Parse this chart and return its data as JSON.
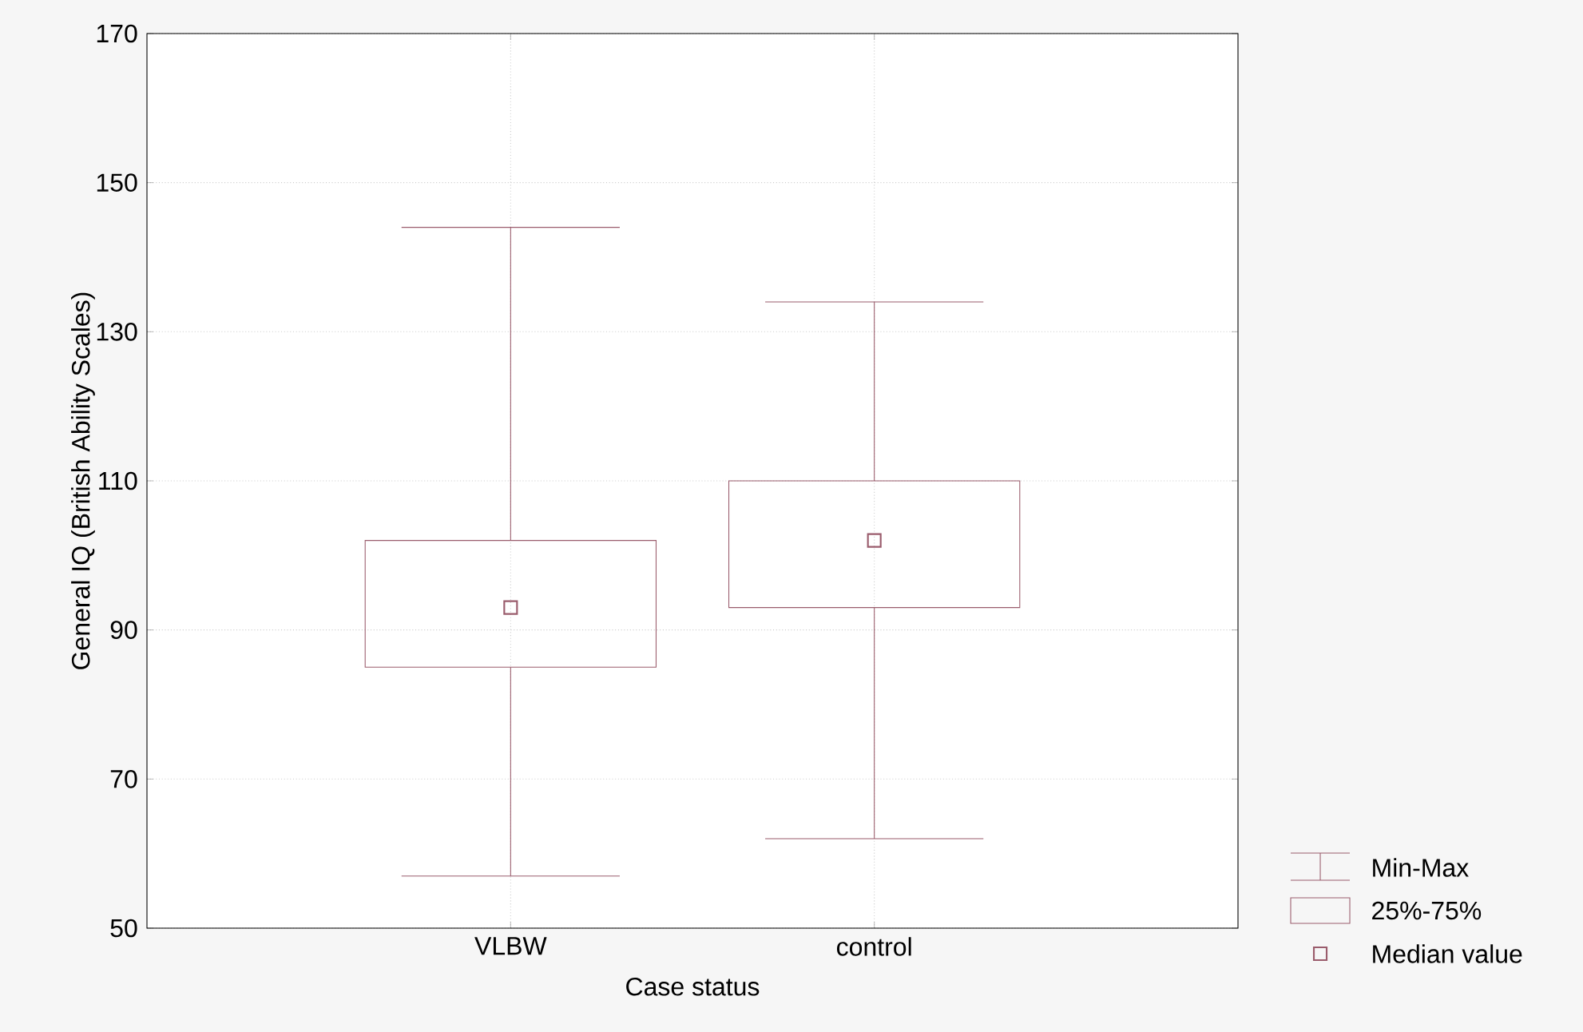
{
  "chart_data": {
    "type": "box",
    "categories": [
      "VLBW",
      "control"
    ],
    "color": "#9a5c6c",
    "boxes": [
      {
        "low": 57,
        "q1": 85,
        "median": 93,
        "q3": 102,
        "high": 144
      },
      {
        "low": 62,
        "q1": 93,
        "median": 102,
        "q3": 110,
        "high": 134
      }
    ],
    "marker": "square",
    "xlabel": "Case status",
    "ylabel": "General IQ (British Ability Scales)",
    "ylim": [
      50,
      170
    ],
    "yticks": [
      50,
      70,
      90,
      110,
      130,
      150,
      170
    ],
    "grid": true,
    "annotations": [
      "Min-Max",
      "25%-75%",
      "Median value"
    ]
  }
}
